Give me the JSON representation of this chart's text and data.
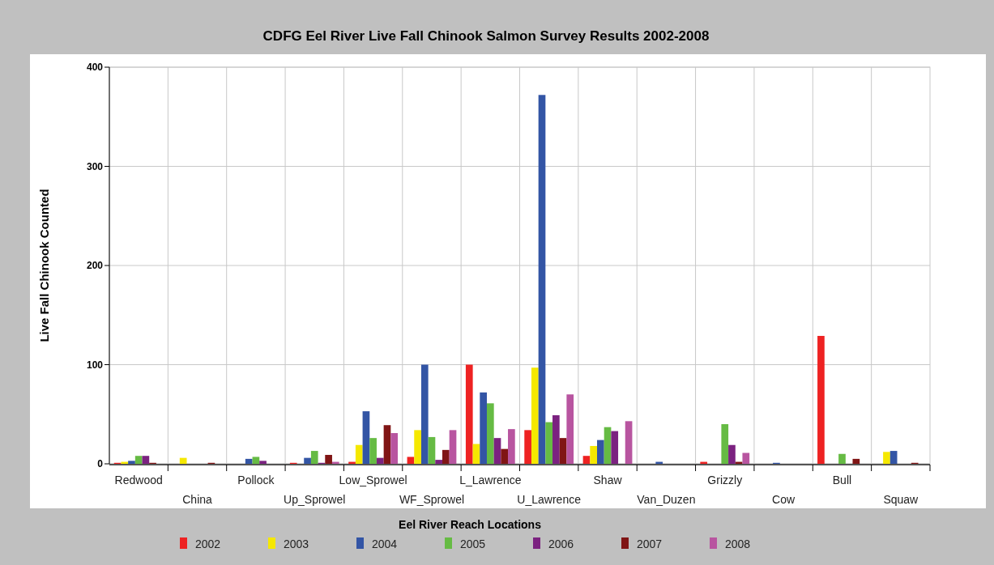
{
  "chart_data": {
    "type": "bar",
    "title": "CDFG Eel River Live Fall Chinook Salmon Survey Results 2002-2008",
    "xlabel": "Eel River Reach Locations",
    "ylabel": "Live Fall Chinook Counted",
    "categories": [
      "Redwood",
      "China",
      "Pollock",
      "Up_Sprowel",
      "Low_Sprowel",
      "WF_Sprowel",
      "L_Lawrence",
      "U_Lawrence",
      "Shaw",
      "Van_Duzen",
      "Grizzly",
      "Cow",
      "Bull",
      "Squaw"
    ],
    "series": [
      {
        "name": "2002",
        "color": "#ee2222",
        "values": [
          1,
          null,
          null,
          1,
          2,
          7,
          100,
          34,
          8,
          null,
          2,
          null,
          129,
          null
        ]
      },
      {
        "name": "2003",
        "color": "#f5e800",
        "values": [
          2,
          6,
          null,
          null,
          19,
          34,
          20,
          97,
          18,
          null,
          null,
          null,
          null,
          12
        ]
      },
      {
        "name": "2004",
        "color": "#3355a5",
        "values": [
          3,
          null,
          5,
          6,
          53,
          100,
          72,
          372,
          24,
          2,
          null,
          1,
          null,
          13
        ]
      },
      {
        "name": "2005",
        "color": "#66bb44",
        "values": [
          8,
          null,
          7,
          13,
          26,
          27,
          61,
          42,
          37,
          null,
          40,
          null,
          10,
          null
        ]
      },
      {
        "name": "2006",
        "color": "#7b2280",
        "values": [
          8,
          null,
          3,
          1,
          6,
          4,
          26,
          49,
          33,
          null,
          19,
          null,
          null,
          null
        ]
      },
      {
        "name": "2007",
        "color": "#801515",
        "values": [
          1,
          1,
          null,
          9,
          39,
          14,
          15,
          26,
          null,
          null,
          2,
          null,
          5,
          1
        ]
      },
      {
        "name": "2008",
        "color": "#b855a0",
        "values": [
          null,
          null,
          null,
          2,
          31,
          34,
          35,
          70,
          43,
          null,
          11,
          null,
          null,
          null
        ]
      }
    ],
    "ylim": [
      0,
      400
    ],
    "yticks": [
      0,
      100,
      200,
      300,
      400
    ],
    "grid": true,
    "legend": "bottom"
  }
}
